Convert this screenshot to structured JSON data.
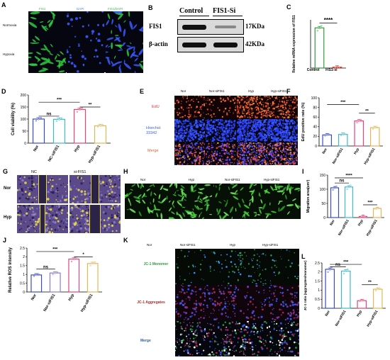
{
  "panels": [
    "A",
    "B",
    "C",
    "D",
    "E",
    "F",
    "G",
    "H",
    "I",
    "J",
    "K",
    "L"
  ],
  "A": {
    "cols": [
      "FIS1",
      "DAPI",
      "FIS1/DAPI"
    ],
    "rows": [
      "Normoxia",
      "Hypoxia"
    ],
    "colors": {
      "fis1": "#2ecc40",
      "dapi": "#3a5bff",
      "bg": "#05060f"
    }
  },
  "B": {
    "cols": [
      "Control",
      "FIS1-Si"
    ],
    "rows": [
      "FIS1",
      "β-actin"
    ],
    "sizes": [
      "17KDa",
      "42KDa"
    ]
  },
  "C": {
    "ylabel": "Relative mRNA expression of FIS1",
    "sig": "****",
    "xticks": [
      "Control",
      "FIS1-si"
    ]
  },
  "D": {
    "ylabel": "Cell viability (%)",
    "sigs": [
      "ns",
      "***",
      "**"
    ]
  },
  "E": {
    "cols": [
      "Nor",
      "Nor-siFIS1",
      "Hyp",
      "Hyp-siFIS1"
    ],
    "rows": [
      "EdU",
      "Hoechst 33342",
      "Merge"
    ]
  },
  "F": {
    "ylabel": "EdU positive rate (%)",
    "sigs": [
      "***",
      "**"
    ]
  },
  "G": {
    "cols": [
      "NC",
      "si-FIS1"
    ],
    "rows": [
      "Nor",
      "Hyp"
    ]
  },
  "H": {
    "cols": [
      "Nor",
      "Hyp",
      "Nor-siFIS1",
      "Hyp-siFIS1"
    ]
  },
  "I": {
    "ylabel": "Migration area(um²)",
    "sigs": [
      "****",
      "ns",
      "***"
    ]
  },
  "J": {
    "ylabel": "Relative ROS intensity",
    "sigs": [
      "***",
      "ns",
      "*"
    ]
  },
  "K": {
    "cols": [
      "Nor",
      "Nor-siFIS1",
      "Hyp",
      "Hyp-siFIS1"
    ],
    "rows": [
      "JC-1 Monomer",
      "JC-1 Aggregates",
      "Merge"
    ]
  },
  "L": {
    "ylabel": "JC-1 ratio (aggregates/monomer)",
    "sigs": [
      "***",
      "ns",
      "**"
    ]
  },
  "chart_data": [
    {
      "id": "C",
      "type": "bar",
      "categories": [
        "Control",
        "FIS1-si"
      ],
      "values": [
        1.0,
        0.02
      ],
      "ylim": [
        0,
        1.2
      ],
      "ylabel": "Relative mRNA expression of FIS1",
      "colors": [
        "#2e9e3a",
        "#c0392b"
      ]
    },
    {
      "id": "D",
      "type": "bar",
      "categories": [
        "Nor",
        "NC-siFIS1",
        "Hyp",
        "Hyp-siFIS1"
      ],
      "values": [
        100,
        99,
        140,
        72
      ],
      "ylim": [
        0,
        200
      ],
      "yticks": [
        0,
        50,
        100,
        150,
        200
      ],
      "ylabel": "Cell viability (%)",
      "colors": [
        "#3b4cc0",
        "#3fb8c9",
        "#e0457b",
        "#e0b85a"
      ]
    },
    {
      "id": "F",
      "type": "bar",
      "categories": [
        "Nor",
        "Nor-siFIS1",
        "Hyp",
        "Hyp-siFIS1"
      ],
      "values": [
        23,
        24,
        52,
        38
      ],
      "ylim": [
        0,
        100
      ],
      "yticks": [
        0,
        20,
        40,
        60,
        80,
        100
      ],
      "ylabel": "EdU positive rate (%)",
      "colors": [
        "#3b4cc0",
        "#3fb8c9",
        "#e0457b",
        "#e0b85a"
      ]
    },
    {
      "id": "I",
      "type": "bar",
      "categories": [
        "Nor",
        "Nor-siFIS1",
        "Hyp",
        "Hyp-siFIS1"
      ],
      "values": [
        105,
        108,
        4,
        32
      ],
      "ylim": [
        0,
        150
      ],
      "yticks": [
        0,
        50,
        100,
        150
      ],
      "ylabel": "Migration area(um²)",
      "colors": [
        "#3b4cc0",
        "#3fb8c9",
        "#e0457b",
        "#e0b85a"
      ]
    },
    {
      "id": "J",
      "type": "bar",
      "categories": [
        "Nor",
        "Nor-siFIS1",
        "Hyp",
        "Hyp-siFIS1"
      ],
      "values": [
        0.97,
        1.08,
        1.87,
        1.62
      ],
      "ylim": [
        0,
        2.5
      ],
      "yticks": [
        0,
        0.5,
        1.0,
        1.5,
        2.0,
        2.5
      ],
      "ylabel": "Relative ROS intensity",
      "colors": [
        "#3b4cc0",
        "#8e7cc3",
        "#e0457b",
        "#e0b85a"
      ]
    },
    {
      "id": "L",
      "type": "bar",
      "categories": [
        "Nor",
        "Nor-siFIS1",
        "Hyp",
        "Hyp-siFIS1"
      ],
      "values": [
        2.15,
        2.05,
        0.42,
        1.05
      ],
      "ylim": [
        0,
        2.5
      ],
      "yticks": [
        0,
        0.5,
        1.0,
        1.5,
        2.0,
        2.5
      ],
      "ylabel": "JC-1 ratio (aggregates/monomer)",
      "colors": [
        "#3b4cc0",
        "#3fb8c9",
        "#e0457b",
        "#e0b85a"
      ]
    }
  ]
}
